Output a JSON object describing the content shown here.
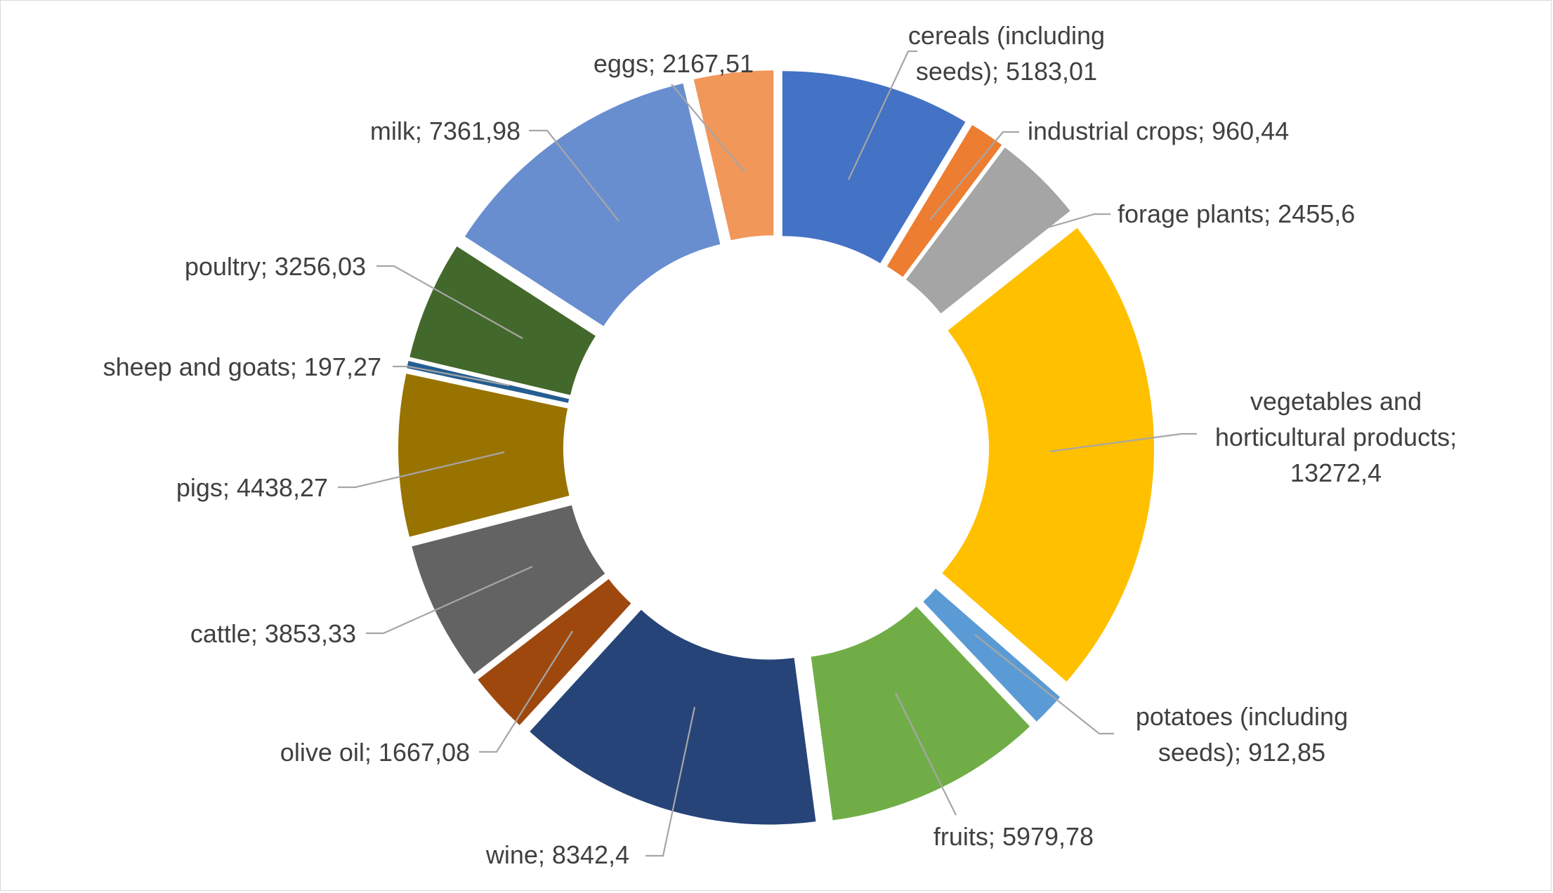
{
  "chart_data": {
    "type": "pie",
    "variant": "doughnut-exploded",
    "title": "",
    "legend": "none",
    "separator": "; ",
    "series": [
      {
        "name": "cereals (including seeds)",
        "value": 5183.01,
        "display": "5183,01",
        "color": "#4472c4"
      },
      {
        "name": "industrial crops",
        "value": 960.44,
        "display": "960,44",
        "color": "#ed7d31"
      },
      {
        "name": "forage plants",
        "value": 2455.6,
        "display": "2455,6",
        "color": "#a5a5a5"
      },
      {
        "name": "vegetables and horticultural products",
        "value": 13272.4,
        "display": "13272,4",
        "color": "#ffc000"
      },
      {
        "name": "potatoes (including seeds)",
        "value": 912.85,
        "display": "912,85",
        "color": "#5b9bd5"
      },
      {
        "name": "fruits",
        "value": 5979.78,
        "display": "5979,78",
        "color": "#70ad47"
      },
      {
        "name": "wine",
        "value": 8342.4,
        "display": "8342,4",
        "color": "#264478"
      },
      {
        "name": "olive oil",
        "value": 1667.08,
        "display": "1667,08",
        "color": "#9e480e"
      },
      {
        "name": "cattle",
        "value": 3853.33,
        "display": "3853,33",
        "color": "#636363"
      },
      {
        "name": "pigs",
        "value": 4438.27,
        "display": "4438,27",
        "color": "#997300"
      },
      {
        "name": "sheep and goats",
        "value": 197.27,
        "display": "197,27",
        "color": "#255e91"
      },
      {
        "name": "poultry",
        "value": 3256.03,
        "display": "3256,03",
        "color": "#43682b"
      },
      {
        "name": "milk",
        "value": 7361.98,
        "display": "7361,98",
        "color": "#698ed0"
      },
      {
        "name": "eggs",
        "value": 2167.51,
        "display": "2167,51",
        "color": "#f1975a"
      }
    ]
  }
}
